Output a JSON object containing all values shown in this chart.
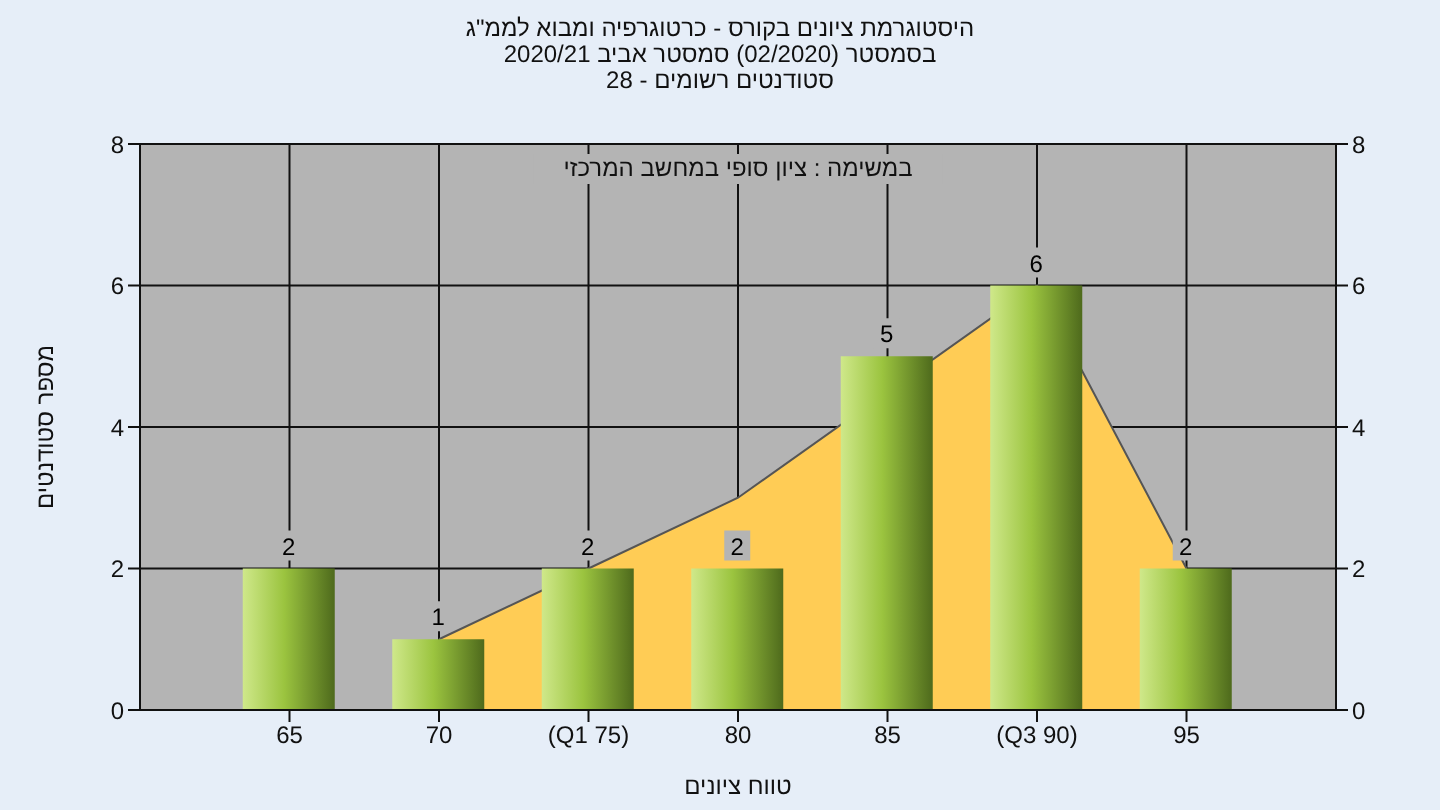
{
  "chart_data": {
    "type": "bar",
    "title": "היסטוגרמת ציונים בקורס - כרטוגרפיה ומבוא לממ\"ג",
    "subtitle": "בסמסטר (02/2020) סמסטר אביב 2020/21\nסטודנטים רשומים - 28",
    "xlabel": "טווח ציונים",
    "ylabel": "מספר סטודנטים",
    "annotations": [
      "במשימה : ציון סופי במחשב המרכזי"
    ],
    "categories": [
      "65",
      "70",
      "(Q1 75)",
      "80",
      "85",
      "(Q3 90)",
      "95"
    ],
    "series": [
      {
        "type": "area",
        "color": "#ffcc55",
        "values": [
          null,
          1,
          2,
          3,
          null,
          6,
          2
        ]
      },
      {
        "color": "#9bc43f",
        "values": [
          2,
          1,
          2,
          2,
          5,
          6,
          2
        ],
        "value_labels": [
          "2",
          "1",
          "2",
          "2",
          "5",
          "6",
          "2"
        ]
      }
    ],
    "ylim": [
      0,
      8
    ],
    "yticks": [
      0,
      2,
      4,
      6,
      8
    ],
    "y2lim": [
      0,
      8
    ],
    "y2ticks": [
      0,
      2,
      4,
      6,
      8
    ],
    "grid": true
  }
}
